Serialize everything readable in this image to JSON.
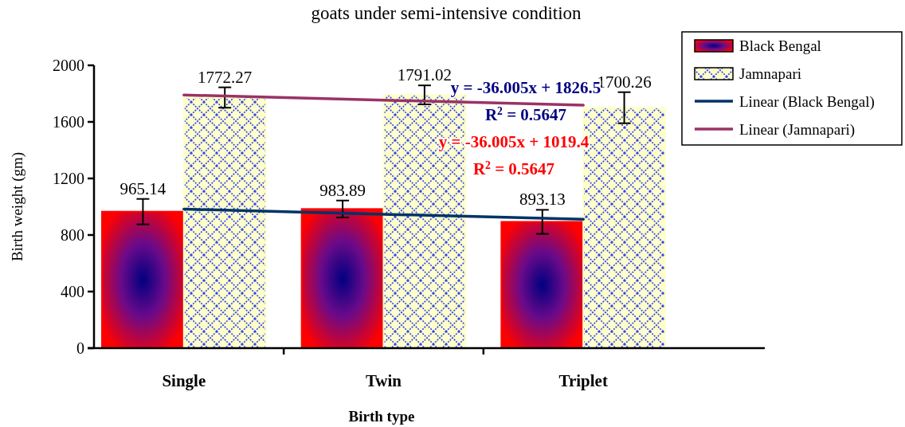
{
  "chart_data": {
    "type": "bar",
    "title": "goats under semi-intensive condition",
    "xlabel": "Birth type",
    "ylabel": "Birth weight (gm)",
    "categories": [
      "Single",
      "Twin",
      "Triplet"
    ],
    "series": [
      {
        "name": "Black Bengal",
        "color": "#ff0000",
        "values": [
          965.14,
          983.89,
          893.13
        ],
        "errors": [
          90,
          60,
          85
        ],
        "value_labels": [
          "965.14",
          "983.89",
          "893.13"
        ]
      },
      {
        "name": "Jamnapari",
        "color": "#ffffcc",
        "values": [
          1772.27,
          1791.02,
          1700.26
        ],
        "errors": [
          72,
          67,
          110
        ],
        "value_labels": [
          "1772.27",
          "1791.02",
          "1700.26"
        ]
      },
      {
        "name": "Linear (Black Bengal)",
        "type": "line",
        "color": "#003366",
        "values": [
          983,
          947,
          911
        ]
      },
      {
        "name": "Linear (Jamnapari)",
        "type": "line",
        "color": "#993366",
        "values": [
          1790,
          1754,
          1718
        ]
      }
    ],
    "ylim": [
      0,
      2000
    ],
    "yticks": [
      0,
      400,
      800,
      1200,
      1600,
      2000
    ],
    "legend": "top right",
    "grid": false,
    "annotations": [
      "y = -36.005x + 1826.5",
      "R$^{2}$ = 0.5647",
      "y = -36.005x + 1019.4",
      "R$^{2}$ = 0.5647"
    ]
  }
}
